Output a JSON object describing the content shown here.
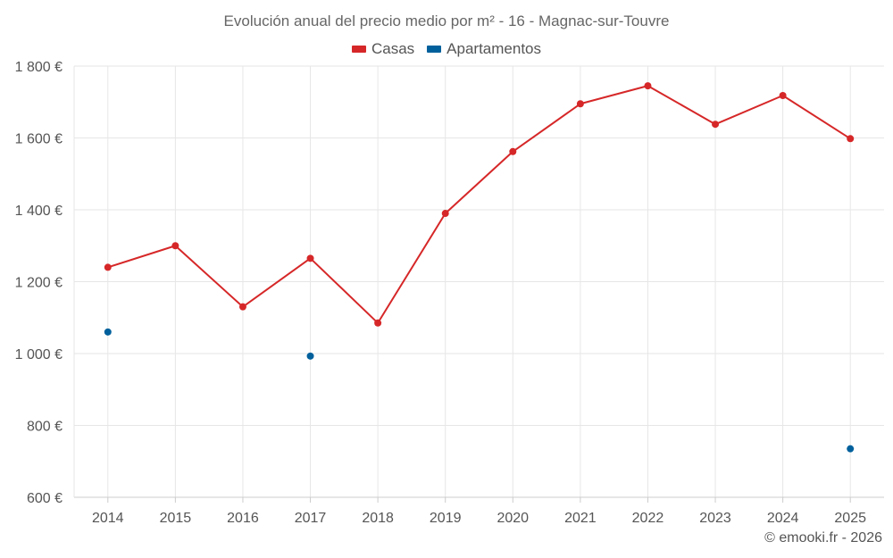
{
  "colors": {
    "casas": "#d62728",
    "apartamentos": "#00609c",
    "grid": "#e6e6e6",
    "axis": "#cccccc"
  },
  "footer": {
    "credit": "© emooki.fr - 2026"
  },
  "chart_data": {
    "type": "line",
    "title": "Evolución anual del precio medio por m² - 16 - Magnac-sur-Touvre",
    "categories": [
      "2014",
      "2015",
      "2016",
      "2017",
      "2018",
      "2019",
      "2020",
      "2021",
      "2022",
      "2023",
      "2024",
      "2025"
    ],
    "series": [
      {
        "name": "Casas",
        "color": "#d62728",
        "style": "line+markers",
        "values": [
          1240,
          1300,
          1130,
          1265,
          1085,
          1390,
          1562,
          1695,
          1745,
          1638,
          1718,
          1598
        ]
      },
      {
        "name": "Apartamentos",
        "color": "#00609c",
        "style": "markers",
        "values": [
          1060,
          null,
          null,
          993,
          null,
          null,
          null,
          null,
          null,
          null,
          null,
          735
        ]
      }
    ],
    "ylim": [
      600,
      1800
    ],
    "yticks": [
      600,
      800,
      1000,
      1200,
      1400,
      1600,
      1800
    ],
    "ytick_labels": [
      "600 €",
      "800 €",
      "1 000 €",
      "1 200 €",
      "1 400 €",
      "1 600 €",
      "1 800 €"
    ],
    "grid": true,
    "legend_position": "top-center"
  }
}
